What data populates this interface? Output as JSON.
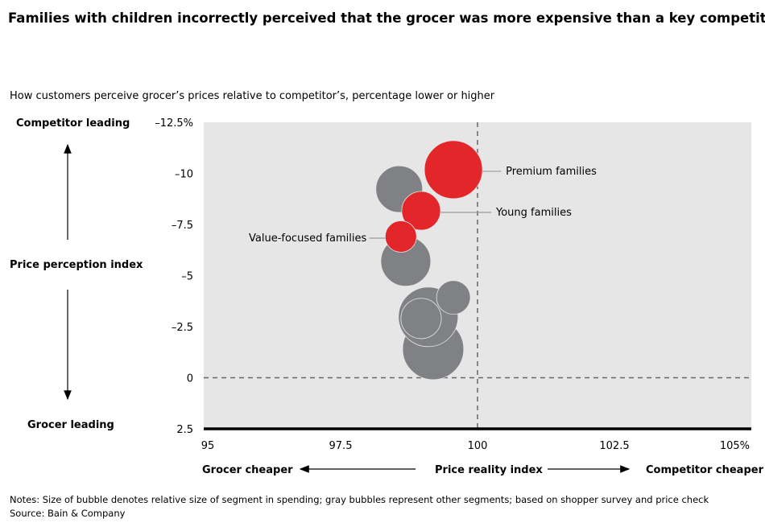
{
  "chart_data": {
    "type": "bubble",
    "title": "Families with children incorrectly perceived that the grocer was more expensive than a key competitor",
    "subtitle": "How customers perceive grocer’s prices relative to competitor’s, percentage lower or higher",
    "xlabel": "Price reality index",
    "ylabel": "Price perception index",
    "x_left_label": "Grocer cheaper",
    "x_right_label": "Competitor cheaper",
    "y_top_label": "Competitor leading",
    "y_bottom_label": "Grocer leading",
    "xlim": [
      95,
      105
    ],
    "ylim": [
      2.5,
      -12.5
    ],
    "y_reversed": true,
    "x_ticks": [
      "95",
      "97.5",
      "100",
      "102.5",
      "105%"
    ],
    "x_tick_values": [
      95,
      97.5,
      100,
      102.5,
      105
    ],
    "y_ticks": [
      "–12.5%",
      "–10",
      "–7.5",
      "–5",
      "–2.5",
      "0",
      "2.5"
    ],
    "y_tick_values": [
      -12.5,
      -10,
      -7.5,
      -5,
      -2.5,
      0,
      2.5
    ],
    "reference_lines": {
      "x": 100,
      "y": 0
    },
    "grid": false,
    "colors": {
      "highlight": "#e3262a",
      "other": "#808184",
      "plot_bg": "#e6e6e6"
    },
    "points": [
      {
        "label": "",
        "x": 98.57,
        "y": -9.23,
        "size": 8.4,
        "highlight": false
      },
      {
        "label": "Premium families",
        "x": 99.56,
        "y": -10.18,
        "size": 13.0,
        "highlight": true
      },
      {
        "label": "Young families",
        "x": 98.97,
        "y": -8.17,
        "size": 5.8,
        "highlight": true
      },
      {
        "label": "",
        "x": 98.69,
        "y": -5.7,
        "size": 9.6,
        "highlight": false
      },
      {
        "label": "Value-focused families",
        "x": 98.6,
        "y": -6.91,
        "size": 3.8,
        "highlight": true
      },
      {
        "label": "",
        "x": 99.19,
        "y": -1.4,
        "size": 14.4,
        "highlight": false
      },
      {
        "label": "",
        "x": 99.1,
        "y": -2.98,
        "size": 13.7,
        "highlight": false
      },
      {
        "label": "",
        "x": 98.97,
        "y": -2.9,
        "size": 6.3,
        "highlight": false
      },
      {
        "label": "",
        "x": 99.56,
        "y": -3.93,
        "size": 4.4,
        "highlight": false
      }
    ]
  },
  "notes": "Notes: Size of bubble denotes relative size of segment in spending; gray bubbles represent other segments; based on shopper survey and price check",
  "source": "Source: Bain & Company"
}
